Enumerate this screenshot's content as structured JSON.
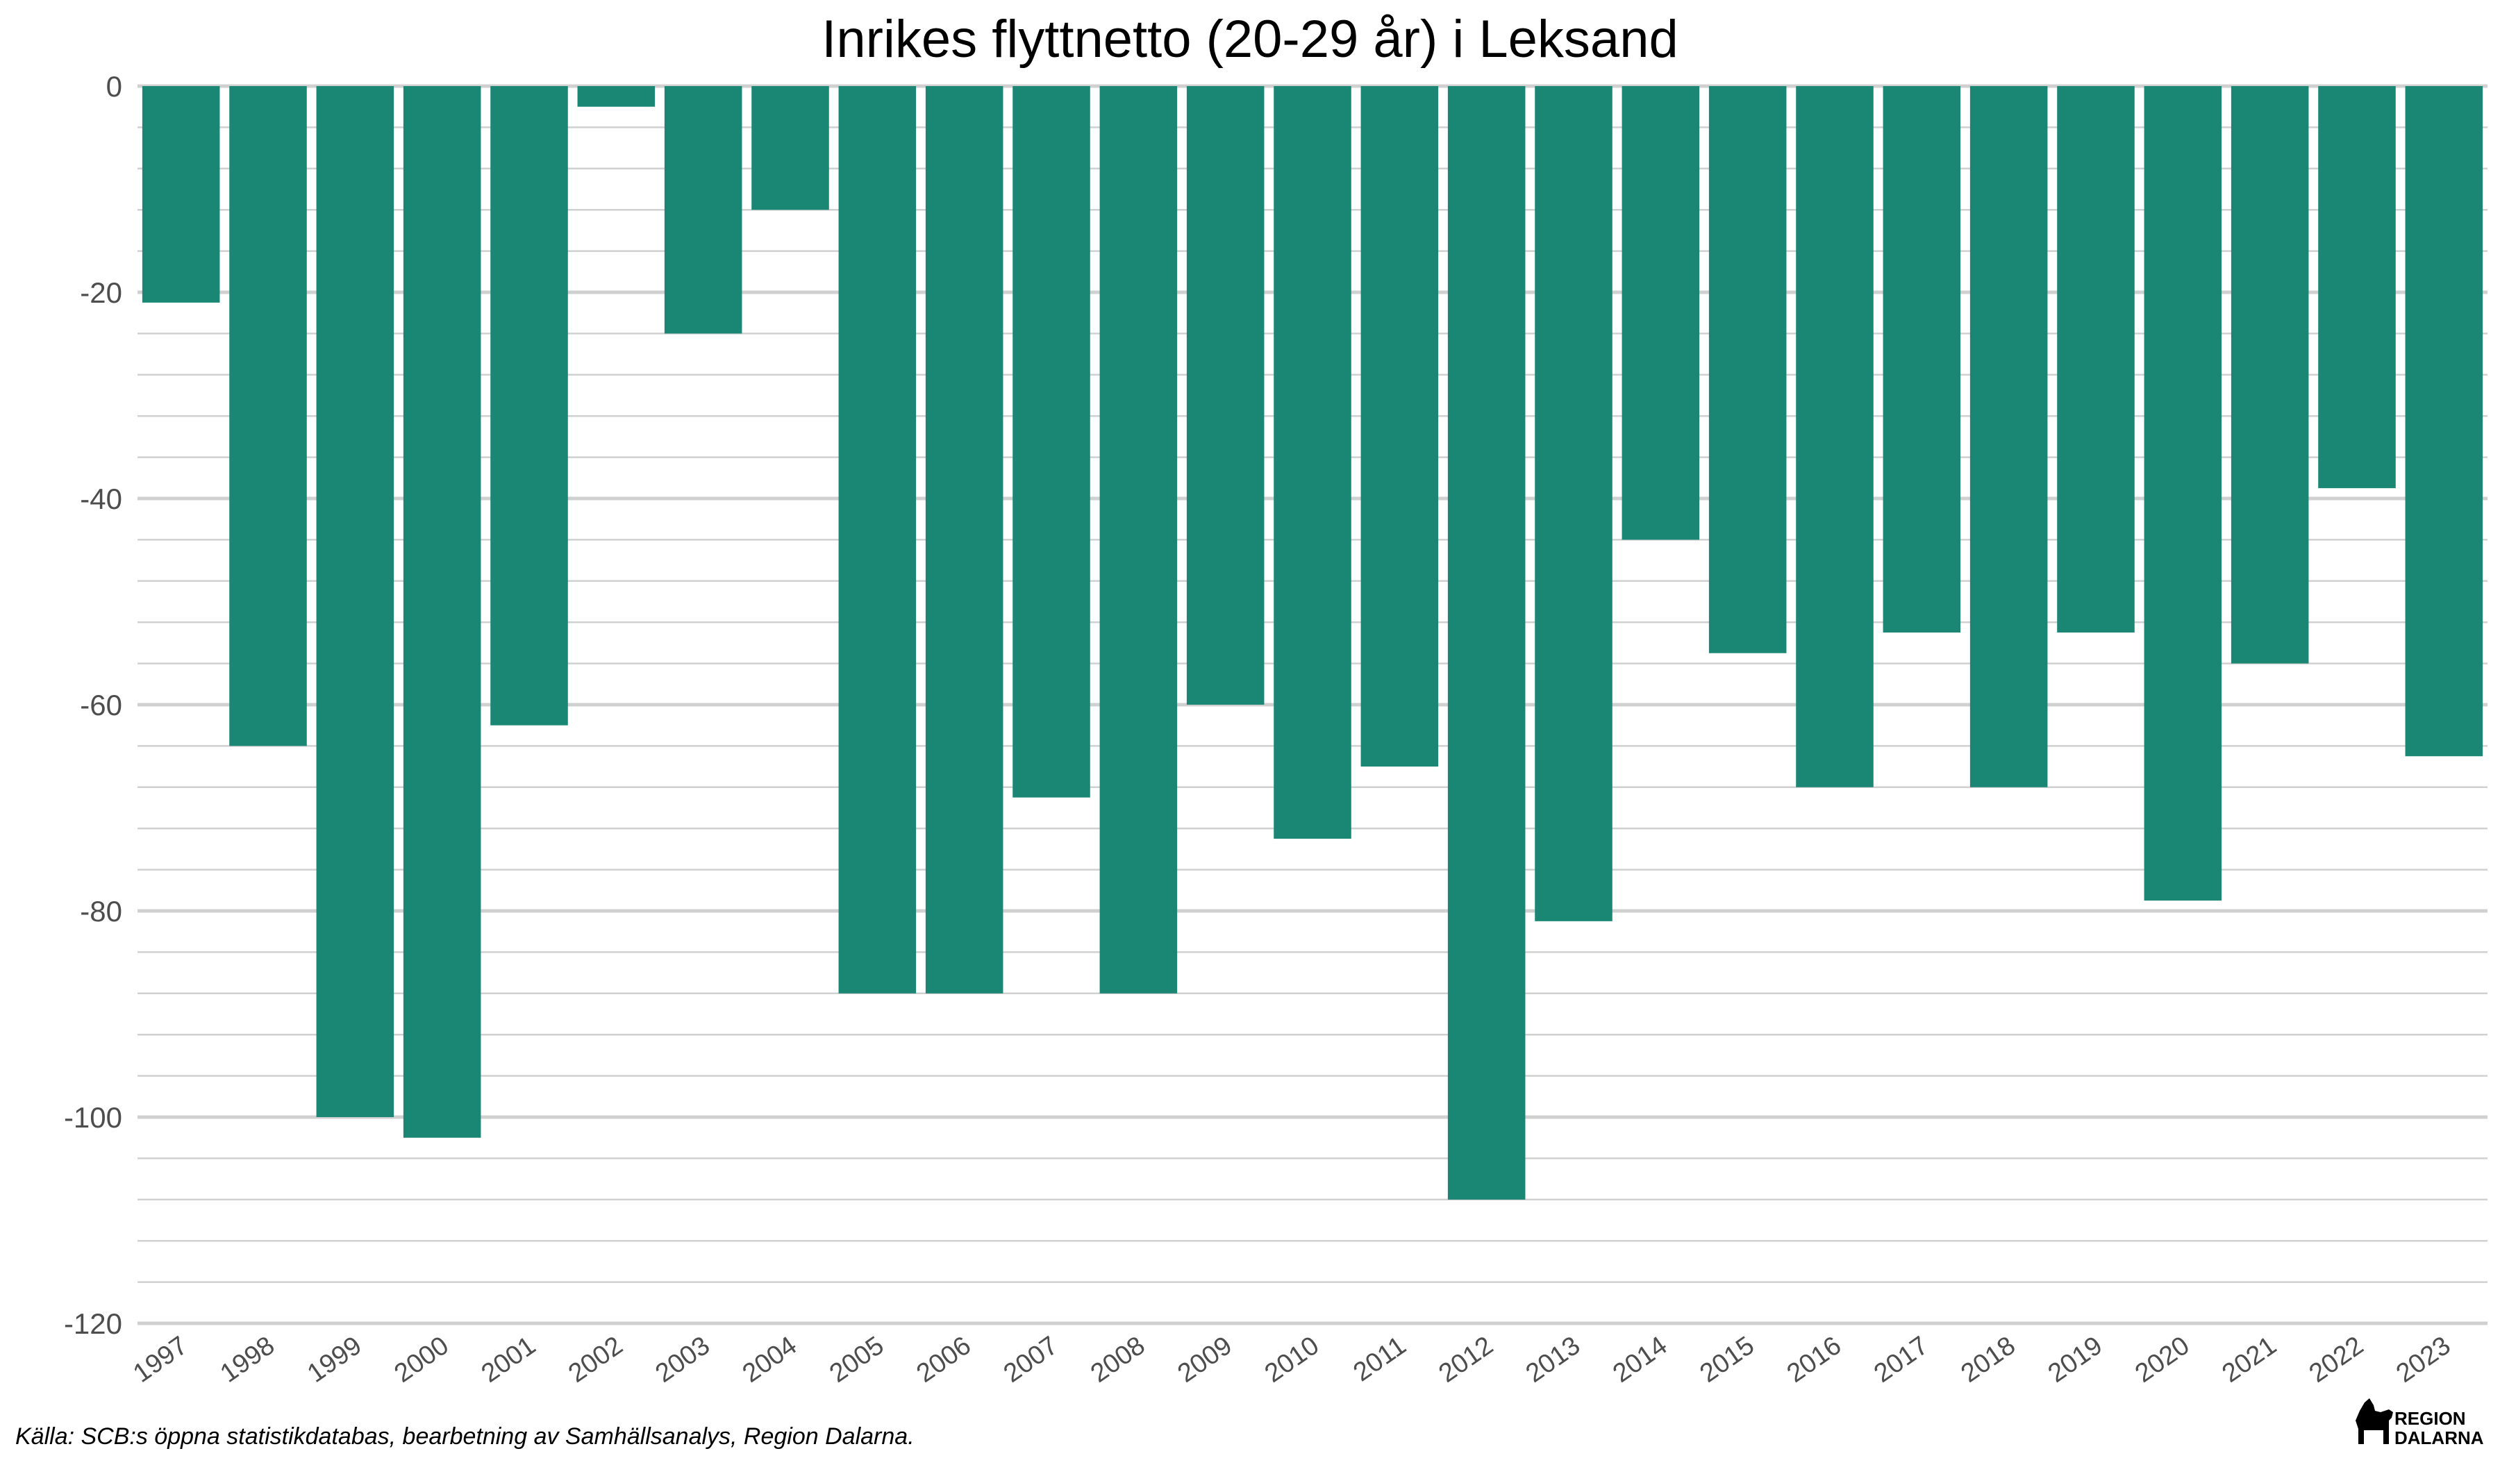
{
  "chart_data": {
    "type": "bar",
    "title": "Inrikes flyttnetto (20-29 år) i Leksand",
    "xlabel": "",
    "ylabel": "",
    "categories": [
      "1997",
      "1998",
      "1999",
      "2000",
      "2001",
      "2002",
      "2003",
      "2004",
      "2005",
      "2006",
      "2007",
      "2008",
      "2009",
      "2010",
      "2011",
      "2012",
      "2013",
      "2014",
      "2015",
      "2016",
      "2017",
      "2018",
      "2019",
      "2020",
      "2021",
      "2022",
      "2023"
    ],
    "values": [
      -21,
      -64,
      -100,
      -102,
      -62,
      -2,
      -24,
      -12,
      -88,
      -88,
      -69,
      -88,
      -60,
      -73,
      -66,
      -108,
      -81,
      -44,
      -55,
      -68,
      -53,
      -68,
      -53,
      -79,
      -56,
      -39,
      -65
    ],
    "ylim": [
      -120,
      0
    ],
    "yticks": [
      0,
      -20,
      -40,
      -60,
      -80,
      -100,
      -120
    ],
    "ytick_labels": [
      "0",
      "-20",
      "-40",
      "-60",
      "-80",
      "-100",
      "-120"
    ],
    "grid": true,
    "bar_color": "#1a8774",
    "grid_color": "#d0d0d0"
  },
  "caption": "Källa: SCB:s öppna statistikdatabas, bearbetning av Samhällsanalys, Region Dalarna.",
  "logo": {
    "line1": "REGION",
    "line2": "DALARNA",
    "icon": "dala-horse-icon"
  }
}
